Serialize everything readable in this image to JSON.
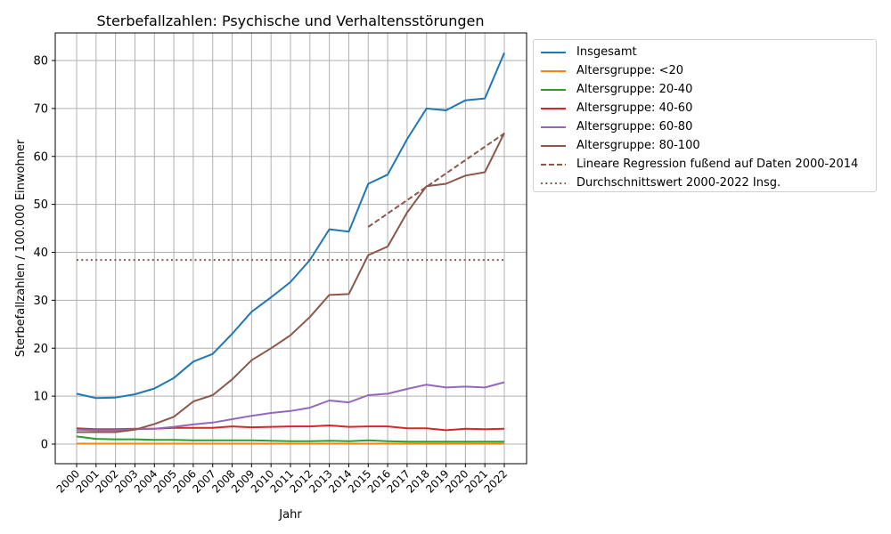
{
  "chart_data": {
    "type": "line",
    "title": "Sterbefallzahlen: Psychische und Verhaltensstörungen",
    "xlabel": "Jahr",
    "ylabel": "Sterbefallzahlen / 100.000 Einwohner",
    "ylim": [
      -4,
      85.5
    ],
    "yticks": [
      0,
      10,
      20,
      30,
      40,
      50,
      60,
      70,
      80
    ],
    "grid": true,
    "legend_position": "outside upper right",
    "x": [
      2000,
      2001,
      2002,
      2003,
      2004,
      2005,
      2006,
      2007,
      2008,
      2009,
      2010,
      2011,
      2012,
      2013,
      2014,
      2015,
      2016,
      2017,
      2018,
      2019,
      2020,
      2021,
      2022
    ],
    "series": [
      {
        "name": "Insgesamt",
        "color": "#1f77b4",
        "style": "solid",
        "values": [
          10.5,
          9.6,
          9.7,
          10.4,
          11.6,
          13.8,
          17.2,
          18.8,
          23.0,
          27.6,
          30.6,
          33.8,
          38.4,
          44.8,
          44.3,
          54.3,
          56.2,
          63.6,
          70.0,
          69.6,
          71.7,
          72.1,
          81.6
        ]
      },
      {
        "name": "Altersgruppe: <20",
        "color": "#ff7f0e",
        "style": "solid",
        "values": [
          0.1,
          0.1,
          0.1,
          0.1,
          0.1,
          0.1,
          0.1,
          0.1,
          0.1,
          0.1,
          0.1,
          0.1,
          0.1,
          0.1,
          0.1,
          0.1,
          0.1,
          0.1,
          0.1,
          0.1,
          0.1,
          0.1,
          0.1
        ]
      },
      {
        "name": "Altersgruppe: 20-40",
        "color": "#2ca02c",
        "style": "solid",
        "values": [
          1.6,
          1.1,
          1.0,
          1.0,
          0.9,
          0.9,
          0.8,
          0.8,
          0.8,
          0.8,
          0.7,
          0.6,
          0.6,
          0.7,
          0.6,
          0.8,
          0.6,
          0.5,
          0.5,
          0.5,
          0.5,
          0.5,
          0.5
        ]
      },
      {
        "name": "Altersgruppe: 40-60",
        "color": "#d62728",
        "style": "solid",
        "values": [
          3.3,
          3.1,
          3.1,
          3.2,
          3.2,
          3.4,
          3.4,
          3.4,
          3.7,
          3.5,
          3.6,
          3.7,
          3.7,
          3.9,
          3.6,
          3.7,
          3.7,
          3.3,
          3.3,
          2.9,
          3.2,
          3.1,
          3.2
        ]
      },
      {
        "name": "Altersgruppe: 60-80",
        "color": "#9467bd",
        "style": "solid",
        "values": [
          3.0,
          2.9,
          2.9,
          3.1,
          3.2,
          3.6,
          4.1,
          4.5,
          5.2,
          5.9,
          6.5,
          6.9,
          7.6,
          9.1,
          8.7,
          10.2,
          10.5,
          11.5,
          12.4,
          11.8,
          12.0,
          11.8,
          12.9
        ]
      },
      {
        "name": "Altersgruppe: 80-100",
        "color": "#8c564b",
        "style": "solid",
        "values": [
          2.5,
          2.5,
          2.5,
          3.0,
          4.2,
          5.7,
          8.9,
          10.2,
          13.5,
          17.5,
          20.0,
          22.7,
          26.5,
          31.1,
          31.3,
          39.4,
          41.2,
          48.3,
          53.8,
          54.3,
          56.0,
          56.7,
          64.9
        ]
      },
      {
        "name": "Lineare Regression fußend auf Daten 2000-2014",
        "color": "#8c564b",
        "style": "dashed",
        "x": [
          2015,
          2022
        ],
        "values": [
          45.3,
          64.8
        ]
      },
      {
        "name": "Durchschnittswert 2000-2022 Insg.",
        "color": "#8c564b",
        "style": "dotted",
        "x": [
          2000,
          2022
        ],
        "values": [
          38.4,
          38.4
        ]
      }
    ]
  }
}
